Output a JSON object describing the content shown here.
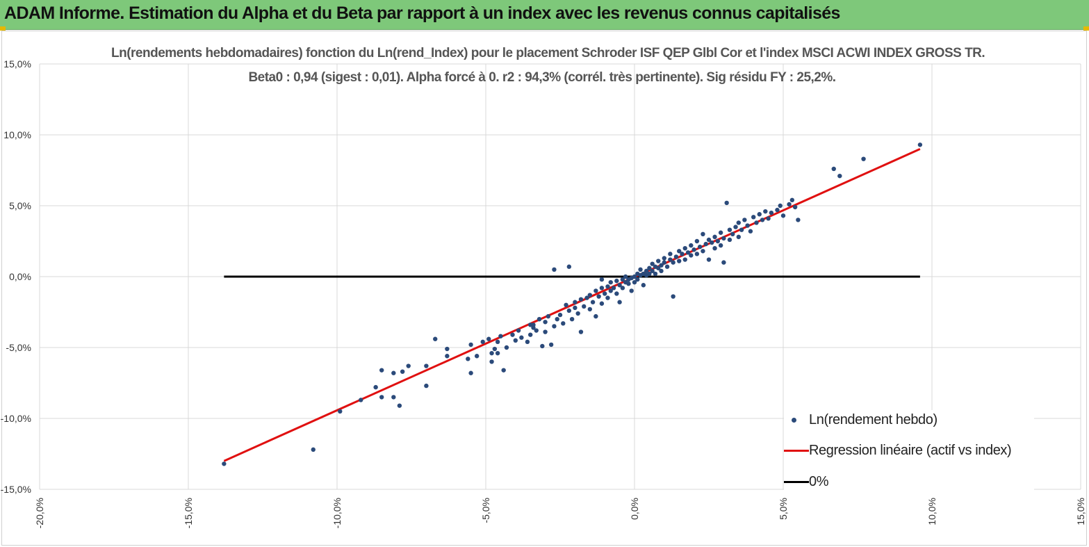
{
  "header": {
    "title": "ADAM Informe. Estimation du Alpha et du Beta par rapport à un index avec les revenus connus capitalisés",
    "background": "#7ec87a"
  },
  "chart_data": {
    "type": "scatter",
    "title": "Ln(rendements hebdomadaires) fonction du Ln(rend_Index) pour le placement Schroder ISF QEP Glbl Cor et l'index MSCI ACWI INDEX GROSS TR.",
    "subtitle": "Beta0 : 0,94 (sigest : 0,01). Alpha forcé à 0. r2 : 94,3% (corrél. très pertinente). Sig résidu FY : 25,2%.",
    "xlabel": "",
    "ylabel": "",
    "xlim": [
      -0.2,
      0.15
    ],
    "ylim": [
      -0.15,
      0.15
    ],
    "x_ticks": [
      -0.2,
      -0.15,
      -0.1,
      -0.05,
      0.0,
      0.05,
      0.1,
      0.15
    ],
    "x_tick_labels": [
      "-20,0%",
      "-15,0%",
      "-10,0%",
      "-5,0%",
      "0,0%",
      "5,0%",
      "10,0%",
      "15,0%"
    ],
    "y_ticks": [
      0.15,
      0.1,
      0.05,
      0.0,
      -0.05,
      -0.1,
      -0.15
    ],
    "y_tick_labels": [
      "15,0%",
      "10,0%",
      "5,0%",
      "0,0%",
      "-5,0%",
      "-10,0%",
      "-15,0%"
    ],
    "grid": true,
    "legend_position": "bottom-right",
    "beta": 0.94,
    "series": [
      {
        "name": "Ln(rendement hebdo)",
        "kind": "scatter",
        "color": "#2b4a7a",
        "points": [
          [
            -0.138,
            -0.132
          ],
          [
            -0.108,
            -0.122
          ],
          [
            -0.099,
            -0.095
          ],
          [
            -0.092,
            -0.087
          ],
          [
            -0.087,
            -0.078
          ],
          [
            -0.085,
            -0.066
          ],
          [
            -0.085,
            -0.085
          ],
          [
            -0.081,
            -0.068
          ],
          [
            -0.081,
            -0.085
          ],
          [
            -0.079,
            -0.091
          ],
          [
            -0.078,
            -0.067
          ],
          [
            -0.076,
            -0.063
          ],
          [
            -0.07,
            -0.077
          ],
          [
            -0.07,
            -0.063
          ],
          [
            -0.067,
            -0.044
          ],
          [
            -0.063,
            -0.056
          ],
          [
            -0.063,
            -0.051
          ],
          [
            -0.056,
            -0.058
          ],
          [
            -0.055,
            -0.048
          ],
          [
            -0.055,
            -0.068
          ],
          [
            -0.053,
            -0.056
          ],
          [
            -0.051,
            -0.046
          ],
          [
            -0.049,
            -0.044
          ],
          [
            -0.048,
            -0.054
          ],
          [
            -0.048,
            -0.06
          ],
          [
            -0.047,
            -0.051
          ],
          [
            -0.046,
            -0.046
          ],
          [
            -0.045,
            -0.042
          ],
          [
            -0.044,
            -0.066
          ],
          [
            -0.043,
            -0.05
          ],
          [
            -0.041,
            -0.041
          ],
          [
            -0.04,
            -0.045
          ],
          [
            -0.039,
            -0.038
          ],
          [
            -0.038,
            -0.043
          ],
          [
            -0.036,
            -0.046
          ],
          [
            -0.035,
            -0.041
          ],
          [
            -0.035,
            -0.034
          ],
          [
            -0.034,
            -0.036
          ],
          [
            -0.033,
            -0.038
          ],
          [
            -0.032,
            -0.03
          ],
          [
            -0.031,
            -0.049
          ],
          [
            -0.03,
            -0.039
          ],
          [
            -0.03,
            -0.032
          ],
          [
            -0.029,
            -0.028
          ],
          [
            -0.028,
            -0.048
          ],
          [
            -0.027,
            -0.035
          ],
          [
            -0.026,
            -0.03
          ],
          [
            -0.025,
            -0.027
          ],
          [
            -0.024,
            -0.033
          ],
          [
            -0.023,
            -0.02
          ],
          [
            -0.022,
            -0.024
          ],
          [
            -0.021,
            -0.03
          ],
          [
            -0.02,
            -0.022
          ],
          [
            -0.02,
            -0.018
          ],
          [
            -0.019,
            -0.026
          ],
          [
            -0.018,
            -0.016
          ],
          [
            -0.018,
            -0.039
          ],
          [
            -0.017,
            -0.021
          ],
          [
            -0.016,
            -0.015
          ],
          [
            -0.015,
            -0.023
          ],
          [
            -0.015,
            -0.013
          ],
          [
            -0.014,
            -0.018
          ],
          [
            -0.013,
            -0.01
          ],
          [
            -0.013,
            -0.028
          ],
          [
            -0.012,
            -0.014
          ],
          [
            -0.011,
            -0.008
          ],
          [
            -0.011,
            -0.019
          ],
          [
            -0.01,
            -0.012
          ],
          [
            -0.009,
            -0.007
          ],
          [
            -0.009,
            -0.015
          ],
          [
            -0.008,
            -0.01
          ],
          [
            -0.008,
            -0.004
          ],
          [
            -0.007,
            -0.008
          ],
          [
            -0.006,
            -0.012
          ],
          [
            -0.006,
            -0.003
          ],
          [
            -0.005,
            -0.006
          ],
          [
            -0.005,
            -0.018
          ],
          [
            -0.004,
            -0.002
          ],
          [
            -0.004,
            -0.008
          ],
          [
            -0.003,
            -0.004
          ],
          [
            -0.003,
            0.0
          ],
          [
            -0.002,
            -0.005
          ],
          [
            -0.002,
            -0.002
          ],
          [
            -0.001,
            -0.001
          ],
          [
            -0.001,
            -0.01
          ],
          [
            0.0,
            0.0
          ],
          [
            0.0,
            -0.004
          ],
          [
            0.001,
            0.002
          ],
          [
            0.001,
            -0.002
          ],
          [
            0.002,
            0.001
          ],
          [
            0.002,
            0.005
          ],
          [
            0.003,
            0.002
          ],
          [
            0.003,
            -0.006
          ],
          [
            0.004,
            0.004
          ],
          [
            0.004,
            0.001
          ],
          [
            0.005,
            0.006
          ],
          [
            0.005,
            0.002
          ],
          [
            0.006,
            0.004
          ],
          [
            0.006,
            0.009
          ],
          [
            0.007,
            0.007
          ],
          [
            0.007,
            0.002
          ],
          [
            0.008,
            0.006
          ],
          [
            0.008,
            0.011
          ],
          [
            0.009,
            0.008
          ],
          [
            0.009,
            0.004
          ],
          [
            0.01,
            0.01
          ],
          [
            0.01,
            0.013
          ],
          [
            0.011,
            0.007
          ],
          [
            0.012,
            0.012
          ],
          [
            0.012,
            0.016
          ],
          [
            0.013,
            0.01
          ],
          [
            0.013,
            -0.014
          ],
          [
            0.014,
            0.014
          ],
          [
            0.015,
            0.018
          ],
          [
            0.015,
            0.011
          ],
          [
            0.016,
            0.016
          ],
          [
            0.017,
            0.02
          ],
          [
            0.017,
            0.012
          ],
          [
            0.018,
            0.017
          ],
          [
            0.019,
            0.022
          ],
          [
            0.019,
            0.015
          ],
          [
            0.02,
            0.019
          ],
          [
            0.021,
            0.025
          ],
          [
            0.021,
            0.016
          ],
          [
            0.022,
            0.021
          ],
          [
            0.023,
            0.03
          ],
          [
            0.023,
            0.018
          ],
          [
            0.024,
            0.023
          ],
          [
            0.025,
            0.026
          ],
          [
            0.025,
            0.012
          ],
          [
            0.026,
            0.024
          ],
          [
            0.027,
            0.028
          ],
          [
            0.027,
            0.02
          ],
          [
            0.028,
            0.025
          ],
          [
            0.029,
            0.031
          ],
          [
            0.029,
            0.022
          ],
          [
            0.03,
            0.027
          ],
          [
            0.03,
            0.01
          ],
          [
            0.031,
            0.052
          ],
          [
            0.032,
            0.033
          ],
          [
            0.032,
            0.026
          ],
          [
            0.033,
            0.03
          ],
          [
            0.034,
            0.035
          ],
          [
            0.035,
            0.038
          ],
          [
            0.035,
            0.028
          ],
          [
            0.036,
            0.033
          ],
          [
            0.037,
            0.04
          ],
          [
            0.038,
            0.036
          ],
          [
            0.039,
            0.032
          ],
          [
            0.04,
            0.042
          ],
          [
            0.041,
            0.038
          ],
          [
            0.042,
            0.044
          ],
          [
            0.043,
            0.04
          ],
          [
            0.044,
            0.046
          ],
          [
            0.045,
            0.041
          ],
          [
            0.046,
            0.045
          ],
          [
            0.048,
            0.047
          ],
          [
            0.049,
            0.05
          ],
          [
            0.05,
            0.043
          ],
          [
            0.052,
            0.051
          ],
          [
            0.053,
            0.054
          ],
          [
            0.054,
            0.049
          ],
          [
            0.055,
            0.04
          ],
          [
            0.067,
            0.076
          ],
          [
            0.069,
            0.071
          ],
          [
            0.077,
            0.083
          ],
          [
            0.096,
            0.093
          ],
          [
            -0.027,
            0.005
          ],
          [
            -0.022,
            0.007
          ],
          [
            -0.046,
            -0.054
          ],
          [
            -0.034,
            -0.034
          ],
          [
            -0.011,
            -0.002
          ]
        ]
      },
      {
        "name": "Regression linéaire (actif vs index)",
        "kind": "line",
        "color": "#e01010",
        "points": [
          [
            -0.138,
            -0.13
          ],
          [
            0.096,
            0.09
          ]
        ]
      },
      {
        "name": "0%",
        "kind": "line",
        "color": "#000000",
        "points": [
          [
            -0.138,
            0.0
          ],
          [
            0.096,
            0.0
          ]
        ]
      }
    ]
  }
}
